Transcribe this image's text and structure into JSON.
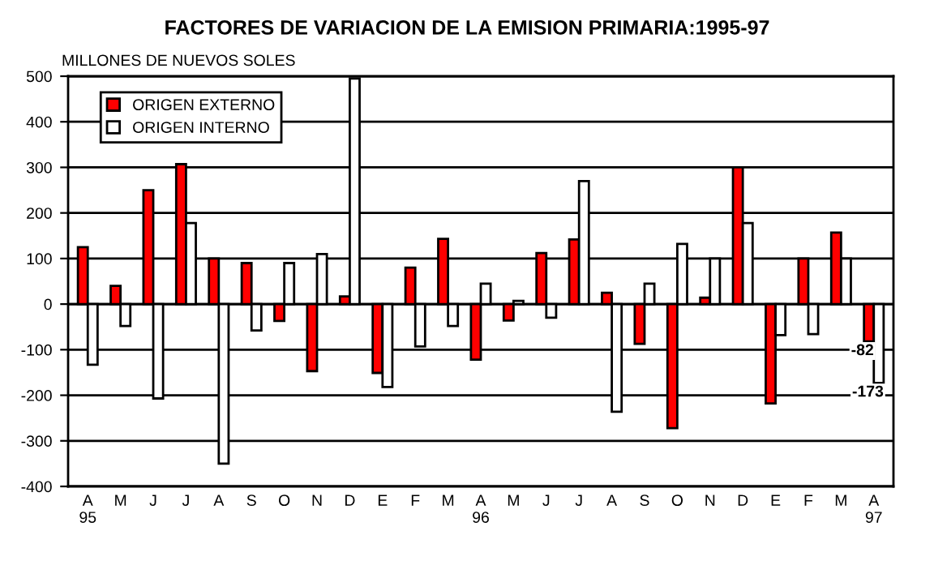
{
  "chart_data": {
    "type": "bar",
    "title": "FACTORES DE VARIACION DE LA EMISION PRIMARIA:1995-97",
    "ylabel": "MILLONES DE NUEVOS SOLES",
    "categories": [
      "A\n95",
      "M",
      "J",
      "J",
      "A",
      "S",
      "O",
      "N",
      "D",
      "E",
      "F",
      "M",
      "A\n96",
      "M",
      "J",
      "J",
      "A",
      "S",
      "O",
      "N",
      "D",
      "E",
      "F",
      "M",
      "A\n97"
    ],
    "series": [
      {
        "name": "ORIGEN EXTERNO",
        "color": "#ff0000",
        "values": [
          125,
          40,
          250,
          307,
          100,
          90,
          -37,
          -147,
          17,
          -151,
          80,
          143,
          -122,
          -36,
          112,
          142,
          25,
          -87,
          -272,
          14,
          300,
          -218,
          100,
          157,
          -82
        ],
        "value_labels": [
          null,
          null,
          null,
          null,
          null,
          null,
          null,
          null,
          null,
          null,
          null,
          null,
          null,
          null,
          null,
          null,
          null,
          null,
          null,
          null,
          null,
          null,
          null,
          null,
          "-82"
        ]
      },
      {
        "name": "ORIGEN INTERNO",
        "color": "#ffffff",
        "values": [
          -133,
          -48,
          -207,
          178,
          -350,
          -58,
          90,
          110,
          495,
          -182,
          -93,
          -48,
          45,
          7,
          -30,
          270,
          -236,
          45,
          132,
          100,
          178,
          -68,
          -66,
          100,
          -173
        ],
        "value_labels": [
          null,
          null,
          null,
          null,
          null,
          null,
          null,
          null,
          null,
          null,
          null,
          null,
          null,
          null,
          null,
          null,
          null,
          null,
          null,
          null,
          null,
          null,
          null,
          null,
          "-173"
        ]
      }
    ],
    "ylim": [
      -400,
      500
    ],
    "yticks": [
      -400,
      -300,
      -200,
      -100,
      0,
      100,
      200,
      300,
      400,
      500
    ],
    "grid": "y",
    "legend": "top left"
  }
}
